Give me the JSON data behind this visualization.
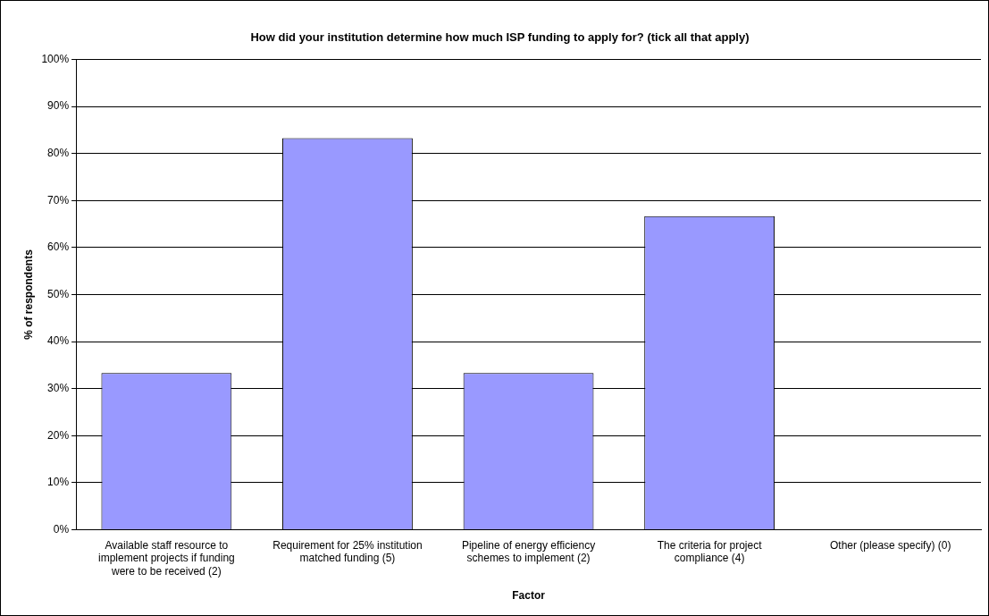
{
  "chart_data": {
    "type": "bar",
    "title": "How did your institution determine how much ISP funding to apply for? (tick all that apply)",
    "xlabel": "Factor",
    "ylabel": "% of respondents",
    "categories": [
      "Available staff resource to implement projects if funding were to be received (2)",
      "Requirement for 25% institution matched funding (5)",
      "Pipeline of energy efficiency schemes to implement (2)",
      "The criteria for project compliance (4)",
      "Other (please specify) (0)"
    ],
    "values": [
      33.3,
      83.3,
      33.3,
      66.7,
      0
    ],
    "color": "#9999ff",
    "ylim": [
      0,
      100
    ],
    "yticks": [
      {
        "value": 0,
        "label": "0%"
      },
      {
        "value": 10,
        "label": "10%"
      },
      {
        "value": 20,
        "label": "20%"
      },
      {
        "value": 30,
        "label": "30%"
      },
      {
        "value": 40,
        "label": "40%"
      },
      {
        "value": 50,
        "label": "50%"
      },
      {
        "value": 60,
        "label": "60%"
      },
      {
        "value": 70,
        "label": "70%"
      },
      {
        "value": 80,
        "label": "80%"
      },
      {
        "value": 90,
        "label": "90%"
      },
      {
        "value": 100,
        "label": "100%"
      }
    ],
    "grid": "y",
    "legend": false
  }
}
